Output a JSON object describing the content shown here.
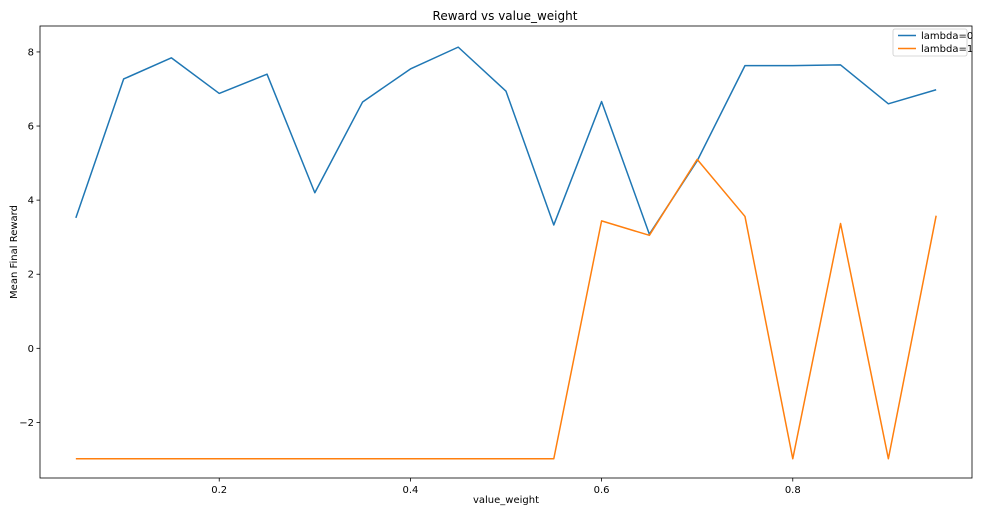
{
  "chart_data": {
    "type": "line",
    "title": "Reward vs value_weight",
    "xlabel": "value_weight",
    "ylabel": "Mean Final Reward",
    "xlim": [
      0.0125,
      0.9875
    ],
    "ylim": [
      -3.5,
      8.7
    ],
    "xticks": [
      0.2,
      0.4,
      0.6,
      0.8
    ],
    "xtick_labels": [
      "0.2",
      "0.4",
      "0.6",
      "0.8"
    ],
    "yticks": [
      -2,
      0,
      2,
      4,
      6,
      8
    ],
    "ytick_labels": [
      "−2",
      "0",
      "2",
      "4",
      "6",
      "8"
    ],
    "grid": false,
    "legend_position": "top-right",
    "x": [
      0.05,
      0.1,
      0.15,
      0.2,
      0.25,
      0.3,
      0.35,
      0.4,
      0.45,
      0.5,
      0.55,
      0.6,
      0.65,
      0.7,
      0.75,
      0.8,
      0.85,
      0.9,
      0.95
    ],
    "series": [
      {
        "name": "lambda=0",
        "color": "#1f77b4",
        "values": [
          3.52,
          7.27,
          7.84,
          6.88,
          7.4,
          4.2,
          6.65,
          7.54,
          8.13,
          6.94,
          3.33,
          6.66,
          3.08,
          5.06,
          7.63,
          7.63,
          7.65,
          6.6,
          6.98
        ]
      },
      {
        "name": "lambda=1",
        "color": "#ff7f0e",
        "values": [
          -2.98,
          -2.98,
          -2.98,
          -2.98,
          -2.98,
          -2.98,
          -2.98,
          -2.98,
          -2.98,
          -2.98,
          -2.98,
          3.44,
          3.05,
          5.1,
          3.56,
          -2.98,
          3.37,
          -2.98,
          3.58
        ]
      }
    ]
  }
}
